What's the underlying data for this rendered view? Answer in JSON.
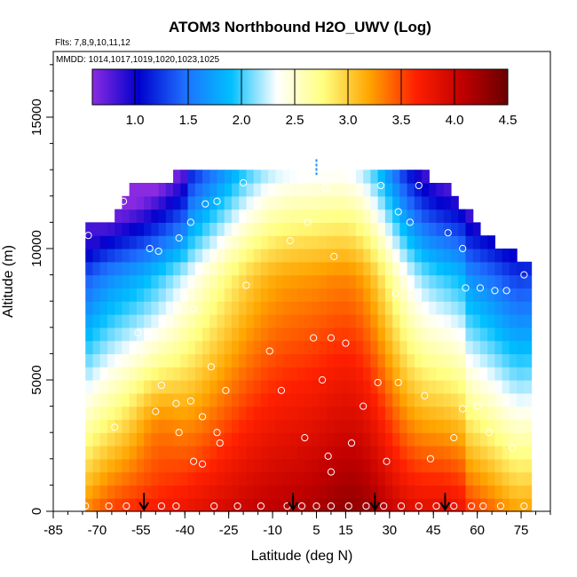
{
  "chart_data": {
    "type": "heatmap",
    "title": "ATOM3 Northbound H2O_UWV (Log)",
    "flights_label": "Flts: 7,8,9,10,11,12",
    "mmdd_label": "MMDD: 1014,1017,1019,1020,1023,1025",
    "xlabel": "Latitude (deg N)",
    "ylabel": "Altitude (m)",
    "xlim": [
      -85,
      85
    ],
    "ylim": [
      0,
      17500
    ],
    "x_ticks": [
      -85,
      -70,
      -55,
      -40,
      -25,
      -10,
      5,
      15,
      30,
      45,
      60,
      75
    ],
    "x_tick_labels": [
      "-85",
      "-70",
      "-55",
      "-40",
      "-25",
      "-10",
      "5",
      "15",
      "30",
      "45",
      "60",
      "75"
    ],
    "y_ticks": [
      0,
      5000,
      10000,
      15000
    ],
    "y_tick_labels": [
      "0",
      "5000",
      "10000",
      "15000"
    ],
    "colorbar": {
      "range": [
        0.6,
        4.5
      ],
      "ticks": [
        1.0,
        1.5,
        2.0,
        2.5,
        3.0,
        3.5,
        4.0,
        4.5
      ],
      "tick_labels": [
        "1.0",
        "1.5",
        "2.0",
        "2.5",
        "3.0",
        "3.5",
        "4.0",
        "4.5"
      ],
      "colors": [
        "#8a2be2",
        "#0000cd",
        "#1e6fff",
        "#00bfff",
        "#ffffff",
        "#ffff80",
        "#ffa500",
        "#ff2000",
        "#c00000",
        "#6a0000"
      ]
    },
    "data_extent": {
      "lat_min": -74,
      "lat_max": 78,
      "upper_alt_profile": [
        [
          -74,
          10500
        ],
        [
          -65,
          11000
        ],
        [
          -58,
          12000
        ],
        [
          -45,
          12500
        ],
        [
          -30,
          12900
        ],
        [
          -15,
          12900
        ],
        [
          0,
          12900
        ],
        [
          15,
          12900
        ],
        [
          30,
          12900
        ],
        [
          42,
          12700
        ],
        [
          50,
          12000
        ],
        [
          58,
          11000
        ],
        [
          65,
          10000
        ],
        [
          72,
          9700
        ],
        [
          78,
          9200
        ]
      ]
    },
    "field_model": "log10 water vapor concentration vs latitude and altitude",
    "sample_points": [
      [
        -80,
        10200
      ],
      [
        -73,
        10500
      ],
      [
        -61,
        11800
      ],
      [
        -52,
        10000
      ],
      [
        -49,
        9900
      ],
      [
        -42,
        10400
      ],
      [
        -38,
        11000
      ],
      [
        -33,
        11700
      ],
      [
        -29,
        11800
      ],
      [
        -20,
        12500
      ],
      [
        -4,
        10300
      ],
      [
        2,
        11000
      ],
      [
        8,
        12300
      ],
      [
        11,
        9700
      ],
      [
        14,
        12900
      ],
      [
        27,
        12400
      ],
      [
        33,
        11400
      ],
      [
        37,
        11000
      ],
      [
        40,
        12400
      ],
      [
        50,
        10600
      ],
      [
        55,
        10000
      ],
      [
        70,
        8400
      ],
      [
        76,
        9000
      ],
      [
        -83,
        8100
      ],
      [
        -40,
        8200
      ],
      [
        -37,
        7700
      ],
      [
        -19,
        8600
      ],
      [
        4,
        6600
      ],
      [
        10,
        6600
      ],
      [
        15,
        6400
      ],
      [
        32,
        8300
      ],
      [
        37,
        8500
      ],
      [
        56,
        8500
      ],
      [
        61,
        8500
      ],
      [
        66,
        8400
      ],
      [
        -56,
        6800
      ],
      [
        -54,
        6000
      ],
      [
        -31,
        5500
      ],
      [
        -26,
        4600
      ],
      [
        -11,
        6100
      ],
      [
        -7,
        4600
      ],
      [
        -78,
        5200
      ],
      [
        -48,
        4800
      ],
      [
        -43,
        4100
      ],
      [
        -38,
        4200
      ],
      [
        -34,
        3600
      ],
      [
        -29,
        3000
      ],
      [
        1,
        2800
      ],
      [
        7,
        5000
      ],
      [
        9,
        2100
      ],
      [
        17,
        2600
      ],
      [
        21,
        4000
      ],
      [
        26,
        4900
      ],
      [
        33,
        4900
      ],
      [
        42,
        4400
      ],
      [
        52,
        2800
      ],
      [
        55,
        3900
      ],
      [
        60,
        4000
      ],
      [
        64,
        3000
      ],
      [
        72,
        2400
      ],
      [
        78,
        3700
      ],
      [
        -64,
        3200
      ],
      [
        -42,
        3000
      ],
      [
        -37,
        1900
      ],
      [
        -34,
        1800
      ],
      [
        -28,
        2600
      ],
      [
        -50,
        3800
      ],
      [
        -78,
        1000
      ],
      [
        -74,
        200
      ],
      [
        -66,
        200
      ],
      [
        -60,
        200
      ],
      [
        -48,
        200
      ],
      [
        -43,
        200
      ],
      [
        -30,
        200
      ],
      [
        -22,
        200
      ],
      [
        -14,
        200
      ],
      [
        -5,
        200
      ],
      [
        0,
        200
      ],
      [
        5,
        200
      ],
      [
        10,
        200
      ],
      [
        16,
        200
      ],
      [
        22,
        200
      ],
      [
        28,
        200
      ],
      [
        34,
        200
      ],
      [
        40,
        200
      ],
      [
        46,
        200
      ],
      [
        52,
        200
      ],
      [
        58,
        200
      ],
      [
        62,
        200
      ],
      [
        68,
        200
      ],
      [
        76,
        200
      ],
      [
        10,
        1500
      ],
      [
        29,
        1900
      ],
      [
        44,
        2000
      ]
    ],
    "profile_markers": [
      {
        "lat": -54,
        "kind": "black-arrow",
        "alt_top": 700
      },
      {
        "lat": -3,
        "kind": "black-arrow",
        "alt_top": 700
      },
      {
        "lat": 25,
        "kind": "black-arrow",
        "alt_top": 700
      },
      {
        "lat": 49,
        "kind": "black-arrow",
        "alt_top": 700
      },
      {
        "lat": 5,
        "kind": "blue-dash",
        "alt_bottom": 12800,
        "alt_top": 13400
      }
    ]
  }
}
